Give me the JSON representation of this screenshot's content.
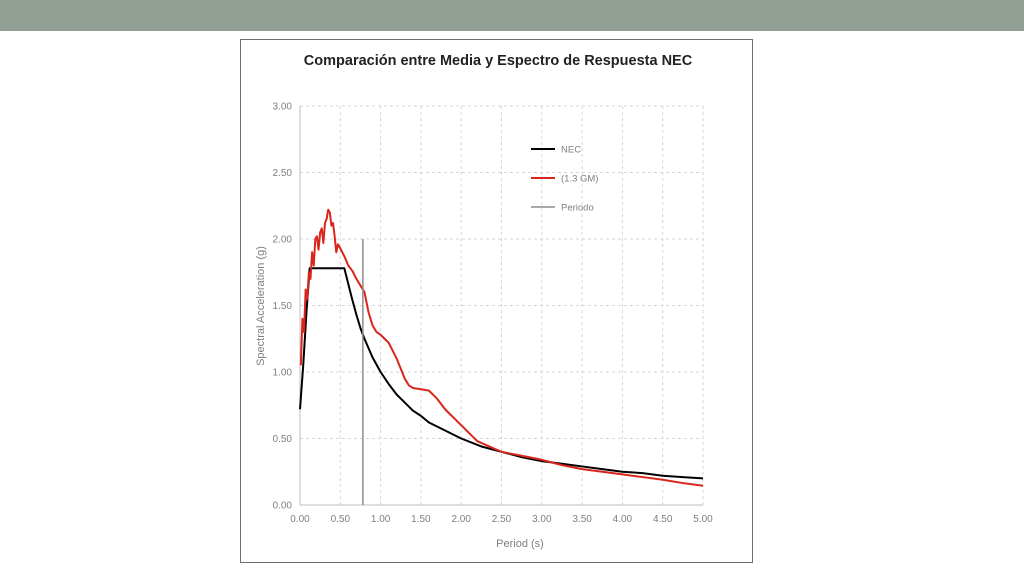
{
  "chart_data": {
    "type": "line",
    "title": "Comparación  entre Media y Espectro de Respuesta NEC",
    "xlabel": "Period (s)",
    "ylabel": "Spectral Acceleration (g)",
    "xlim": [
      0,
      5
    ],
    "ylim": [
      0,
      3
    ],
    "x_ticks": [
      "0.00",
      "0.50",
      "1.00",
      "1.50",
      "2.00",
      "2.50",
      "3.00",
      "3.50",
      "4.00",
      "4.50",
      "5.00"
    ],
    "y_ticks": [
      "0.00",
      "0.50",
      "1.00",
      "1.50",
      "2.00",
      "2.50",
      "3.00"
    ],
    "grid": true,
    "legend_position": "top-right",
    "series": [
      {
        "name": "NEC",
        "color": "#000000",
        "points": [
          [
            0.0,
            0.72
          ],
          [
            0.04,
            1.05
          ],
          [
            0.08,
            1.45
          ],
          [
            0.12,
            1.78
          ],
          [
            0.3,
            1.78
          ],
          [
            0.55,
            1.78
          ],
          [
            0.6,
            1.66
          ],
          [
            0.65,
            1.54
          ],
          [
            0.7,
            1.43
          ],
          [
            0.75,
            1.33
          ],
          [
            0.8,
            1.25
          ],
          [
            0.9,
            1.11
          ],
          [
            1.0,
            1.0
          ],
          [
            1.1,
            0.91
          ],
          [
            1.2,
            0.83
          ],
          [
            1.3,
            0.77
          ],
          [
            1.4,
            0.71
          ],
          [
            1.5,
            0.67
          ],
          [
            1.6,
            0.62
          ],
          [
            1.8,
            0.56
          ],
          [
            2.0,
            0.5
          ],
          [
            2.25,
            0.44
          ],
          [
            2.5,
            0.4
          ],
          [
            2.75,
            0.36
          ],
          [
            3.0,
            0.33
          ],
          [
            3.25,
            0.31
          ],
          [
            3.5,
            0.29
          ],
          [
            3.75,
            0.27
          ],
          [
            4.0,
            0.25
          ],
          [
            4.25,
            0.24
          ],
          [
            4.5,
            0.22
          ],
          [
            4.75,
            0.21
          ],
          [
            5.0,
            0.2
          ]
        ]
      },
      {
        "name": "(1.3 GM)",
        "color": "#d9261c",
        "points": [
          [
            0.01,
            1.05
          ],
          [
            0.03,
            1.4
          ],
          [
            0.05,
            1.3
          ],
          [
            0.07,
            1.62
          ],
          [
            0.09,
            1.55
          ],
          [
            0.11,
            1.75
          ],
          [
            0.13,
            1.7
          ],
          [
            0.15,
            1.9
          ],
          [
            0.17,
            1.8
          ],
          [
            0.19,
            2.0
          ],
          [
            0.21,
            2.02
          ],
          [
            0.23,
            1.92
          ],
          [
            0.25,
            2.05
          ],
          [
            0.27,
            2.08
          ],
          [
            0.29,
            1.97
          ],
          [
            0.31,
            2.12
          ],
          [
            0.33,
            2.15
          ],
          [
            0.35,
            2.22
          ],
          [
            0.37,
            2.2
          ],
          [
            0.39,
            2.1
          ],
          [
            0.41,
            2.12
          ],
          [
            0.43,
            2.02
          ],
          [
            0.45,
            1.9
          ],
          [
            0.47,
            1.96
          ],
          [
            0.5,
            1.93
          ],
          [
            0.55,
            1.87
          ],
          [
            0.6,
            1.8
          ],
          [
            0.65,
            1.76
          ],
          [
            0.7,
            1.7
          ],
          [
            0.75,
            1.65
          ],
          [
            0.8,
            1.6
          ],
          [
            0.85,
            1.45
          ],
          [
            0.9,
            1.35
          ],
          [
            0.95,
            1.3
          ],
          [
            1.0,
            1.28
          ],
          [
            1.1,
            1.22
          ],
          [
            1.2,
            1.1
          ],
          [
            1.3,
            0.95
          ],
          [
            1.35,
            0.9
          ],
          [
            1.4,
            0.88
          ],
          [
            1.5,
            0.87
          ],
          [
            1.6,
            0.86
          ],
          [
            1.7,
            0.8
          ],
          [
            1.8,
            0.72
          ],
          [
            2.0,
            0.6
          ],
          [
            2.2,
            0.48
          ],
          [
            2.5,
            0.4
          ],
          [
            2.75,
            0.37
          ],
          [
            3.0,
            0.34
          ],
          [
            3.25,
            0.3
          ],
          [
            3.5,
            0.27
          ],
          [
            3.75,
            0.25
          ],
          [
            4.0,
            0.23
          ],
          [
            4.25,
            0.21
          ],
          [
            4.5,
            0.19
          ],
          [
            4.75,
            0.165
          ],
          [
            5.0,
            0.145
          ]
        ]
      },
      {
        "name": "Periodo",
        "color": "#8c8c8c",
        "points": [
          [
            0.78,
            0.0
          ],
          [
            0.78,
            2.0
          ]
        ]
      }
    ]
  }
}
